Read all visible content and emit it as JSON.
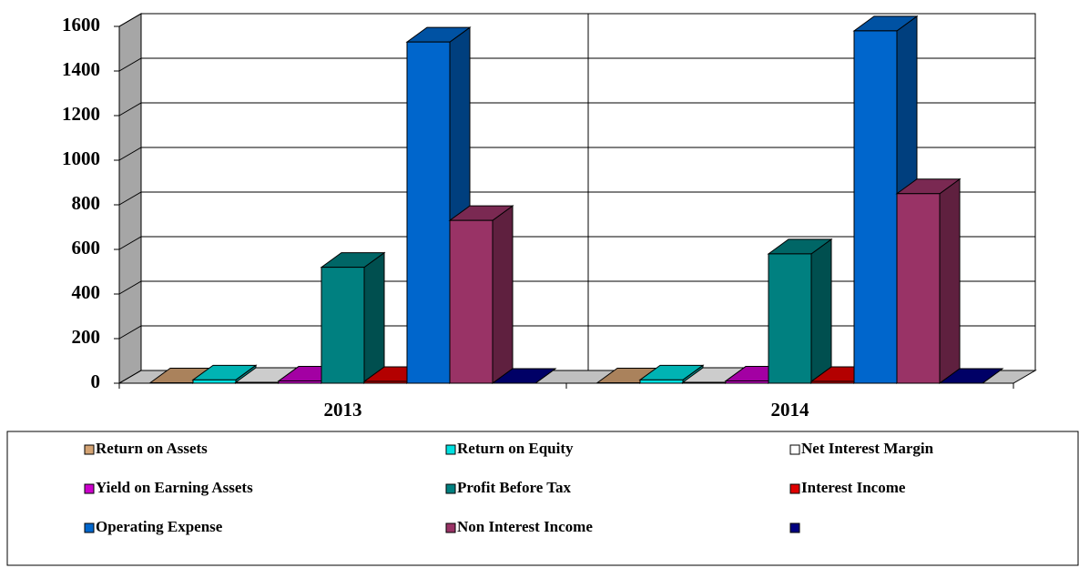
{
  "chart_data": {
    "type": "bar3d",
    "categories": [
      "2013",
      "2014"
    ],
    "series": [
      {
        "name": "Return on Assets",
        "color": "#d4a373",
        "values": [
          2,
          2
        ]
      },
      {
        "name": "Return on Equity",
        "color": "#00e0e0",
        "values": [
          15,
          15
        ]
      },
      {
        "name": "Net Interest Margin",
        "color": "#ffffff",
        "values": [
          4,
          4
        ]
      },
      {
        "name": "Yield on Earning Assets",
        "color": "#cc00cc",
        "values": [
          10,
          10
        ]
      },
      {
        "name": "Profit Before Tax",
        "color": "#008080",
        "values": [
          520,
          580
        ]
      },
      {
        "name": "Interest Income",
        "color": "#e00000",
        "values": [
          8,
          8
        ]
      },
      {
        "name": "Operating Expense",
        "color": "#0066cc",
        "values": [
          1530,
          1580
        ]
      },
      {
        "name": "Non Interest Income",
        "color": "#993366",
        "values": [
          730,
          850
        ]
      },
      {
        "name": null,
        "color": "#000080",
        "values": [
          0,
          0
        ]
      }
    ],
    "ylim": [
      0,
      1600
    ],
    "yticks": [
      0,
      200,
      400,
      600,
      800,
      1000,
      1200,
      1400,
      1600
    ],
    "grid": true
  }
}
